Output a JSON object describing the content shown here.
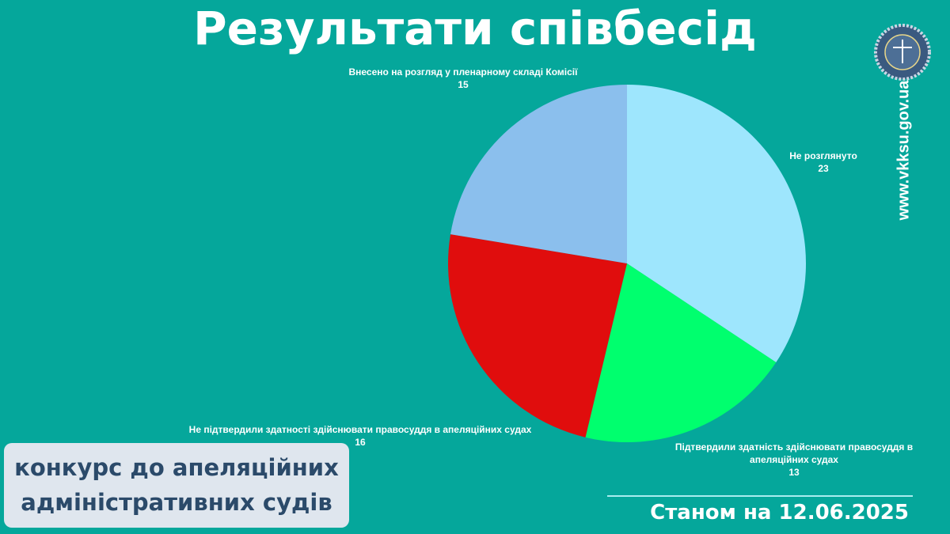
{
  "chart_data": {
    "type": "pie",
    "title": "Результати співбесід",
    "categories": [
      "Не розглянуто",
      "Підтвердили здатність здійснювати правосуддя в апеляційних судах",
      "Не підтвердили здатності здійснювати правосуддя в апеляційних судах",
      "Внесено на розгляд у пленарному складі Комісії"
    ],
    "values": [
      23,
      13,
      16,
      15
    ],
    "colors": [
      "#9ee6fd",
      "#00ff6e",
      "#e00d0d",
      "#8bbfed"
    ]
  },
  "site": "www.vkksu.gov.ua",
  "competition": "конкурс до апеляційних адміністративних судів",
  "as_of": "Станом на 12.06.2025"
}
